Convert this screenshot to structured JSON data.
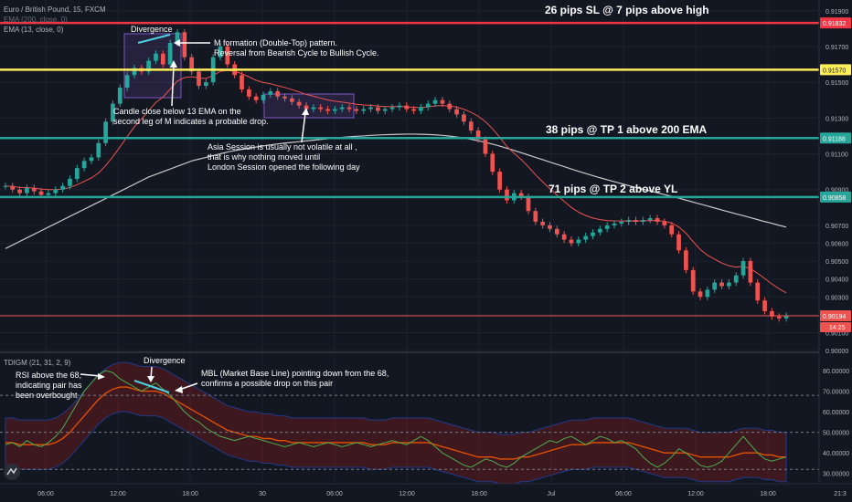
{
  "header": {
    "symbol_line": "Euro / British Pound, 15, FXCM",
    "indicator_1": "EMA (200, close, 0)",
    "indicator_2": "EMA (13, close, 0)",
    "osc_label": "TDIGM (21, 31, 2, 9)"
  },
  "price_axis": {
    "ticks": [
      "0.91900",
      "0.91700",
      "0.91500",
      "0.91300",
      "0.91100",
      "0.90900",
      "0.90700",
      "0.90600",
      "0.90500",
      "0.90400",
      "0.90300",
      "0.90200",
      "0.90100",
      "0.90000"
    ],
    "tick_values": [
      0.919,
      0.917,
      0.915,
      0.913,
      0.911,
      0.909,
      0.907,
      0.906,
      0.905,
      0.904,
      0.903,
      0.902,
      0.901,
      0.9
    ]
  },
  "osc_axis": {
    "ticks": [
      "80.00000",
      "70.00000",
      "60.00000",
      "50.00000",
      "40.00000",
      "30.00000"
    ],
    "tick_values": [
      80,
      70,
      60,
      50,
      40,
      30
    ]
  },
  "time_axis": {
    "labels": [
      "06:00",
      "12:00",
      "18:00",
      "30",
      "06:00",
      "12:00",
      "18:00",
      "Jul",
      "06:00",
      "12:00",
      "18:00",
      "21:3"
    ]
  },
  "levels": [
    {
      "price": 0.91832,
      "label": "0.91832",
      "color": "#f23645",
      "caption": "26 pips SL @ 7 pips above high"
    },
    {
      "price": 0.9157,
      "label": "0.91570",
      "color": "#ffee58",
      "caption": ""
    },
    {
      "price": 0.91188,
      "label": "0.91188",
      "color": "#26a69a",
      "caption": "38 pips @ TP 1 above 200 EMA"
    },
    {
      "price": 0.90858,
      "label": "0.90858",
      "color": "#26a69a",
      "caption": "71 pips @ TP 2 above YL"
    },
    {
      "price": 0.90194,
      "label": "0.90194",
      "color": "#ef5350",
      "caption": ""
    }
  ],
  "current_price": {
    "label": "0.90194",
    "countdown": "14:25"
  },
  "annotations": {
    "divergence_top": "Divergence",
    "m_formation_1": "M formation (Double-Top) pattern.",
    "m_formation_2": "Reversal from Bearish Cycle to Bullish Cycle.",
    "candle_close_1": "Candle close below 13 EMA on the",
    "candle_close_2": "second leg of M indicates a probable drop.",
    "asia_1": "Asia Session is usually not volatile at all ,",
    "asia_2": "that is why nothing moved until",
    "asia_3": "London Session opened the following day",
    "divergence_osc": "Divergence",
    "rsi_1": "RSI above the 68,",
    "rsi_2": "indicating pair has",
    "rsi_3": "been overbought",
    "mbl_1": "MBL (Market Base Line) pointing down from the 68,",
    "mbl_2": "confirms a possible drop on this pair"
  },
  "colors": {
    "background": "#131722",
    "up": "#26a69a",
    "down": "#ef5350",
    "ema13": "#ef5350",
    "ema200": "#c8c8c8",
    "rsi": "#4caf50",
    "mbl": "#e65100",
    "band": "#8e1b1b"
  },
  "chart_data": {
    "type": "candlestick",
    "symbol": "Euro / British Pound",
    "timeframe": "15",
    "ylim": [
      0.8999,
      0.9196
    ],
    "close_series": [
      0.9092,
      0.909,
      0.9088,
      0.9091,
      0.9089,
      0.9087,
      0.9088,
      0.909,
      0.9092,
      0.9096,
      0.9102,
      0.9106,
      0.9108,
      0.9116,
      0.9128,
      0.9138,
      0.9147,
      0.9154,
      0.9158,
      0.9156,
      0.9162,
      0.9166,
      0.916,
      0.9172,
      0.9178,
      0.9164,
      0.9156,
      0.9148,
      0.915,
      0.9164,
      0.917,
      0.916,
      0.9154,
      0.9146,
      0.9142,
      0.914,
      0.9143,
      0.9145,
      0.9142,
      0.9141,
      0.9139,
      0.9137,
      0.9135,
      0.9136,
      0.9135,
      0.9134,
      0.9135,
      0.9136,
      0.9135,
      0.9134,
      0.9135,
      0.9136,
      0.9134,
      0.9135,
      0.9136,
      0.9137,
      0.9135,
      0.9134,
      0.9136,
      0.9138,
      0.914,
      0.9138,
      0.9135,
      0.9132,
      0.9128,
      0.9123,
      0.9118,
      0.911,
      0.91,
      0.909,
      0.9084,
      0.9088,
      0.9086,
      0.9078,
      0.9072,
      0.907,
      0.9068,
      0.9065,
      0.9062,
      0.906,
      0.9062,
      0.9064,
      0.9066,
      0.9068,
      0.907,
      0.9071,
      0.9072,
      0.9073,
      0.9072,
      0.9073,
      0.9074,
      0.9072,
      0.907,
      0.9065,
      0.9056,
      0.9045,
      0.9033,
      0.903,
      0.9034,
      0.9038,
      0.9036,
      0.9038,
      0.9042,
      0.905,
      0.9038,
      0.9028,
      0.9022,
      0.9019,
      0.9018,
      0.90194
    ],
    "ema13": [
      0.9092,
      0.90917,
      0.90912,
      0.90911,
      0.90908,
      0.90903,
      0.909,
      0.909,
      0.90903,
      0.90911,
      0.90927,
      0.90946,
      0.90965,
      0.90993,
      0.91034,
      0.91084,
      0.91139,
      0.91196,
      0.91251,
      0.91295,
      0.91341,
      0.91387,
      0.91417,
      0.91461,
      0.91507,
      0.91526,
      0.91531,
      0.91524,
      0.91521,
      0.91538,
      0.91561,
      0.91566,
      0.91562,
      0.91548,
      0.9153,
      0.91511,
      0.91499,
      0.91492,
      0.91481,
      0.91471,
      0.91459,
      0.91446,
      0.91432,
      0.91422,
      0.91411,
      0.91401,
      0.91394,
      0.91389,
      0.91383,
      0.91377,
      0.91373,
      0.91371,
      0.91367,
      0.91364,
      0.91364,
      0.91365,
      0.91363,
      0.91359,
      0.91359,
      0.91362,
      0.91368,
      0.9137,
      0.91367,
      0.91361,
      0.91349,
      0.91332,
      0.9131,
      0.9128,
      0.9124,
      0.91192,
      0.91141,
      0.91103,
      0.91068,
      0.91027,
      0.90983,
      0.90943,
      0.90905,
      0.90869,
      0.90834,
      0.908,
      0.90774,
      0.90755,
      0.90741,
      0.90732,
      0.90727,
      0.90725,
      0.90724,
      0.90725,
      0.90724,
      0.90725,
      0.90727,
      0.90726,
      0.90723,
      0.90713,
      0.90691,
      0.90656,
      0.90609,
      0.90565,
      0.90533,
      0.90511,
      0.90489,
      0.90474,
      0.90466,
      0.90471,
      0.90458,
      0.90432,
      0.90402,
      0.90372,
      0.90345,
      0.90323
    ],
    "ema200": [
      0.9057,
      0.9059,
      0.9061,
      0.9063,
      0.9065,
      0.9067,
      0.9069,
      0.9071,
      0.9073,
      0.9075,
      0.9077,
      0.9079,
      0.9081,
      0.9083,
      0.9085,
      0.9087,
      0.9089,
      0.9091,
      0.9093,
      0.9095,
      0.9097,
      0.90985,
      0.91,
      0.91015,
      0.9103,
      0.91045,
      0.9106,
      0.9107,
      0.9108,
      0.9109,
      0.911,
      0.9111,
      0.91118,
      0.91125,
      0.91132,
      0.91138,
      0.91144,
      0.9115,
      0.91155,
      0.9116,
      0.91164,
      0.91168,
      0.91172,
      0.91176,
      0.9118,
      0.91184,
      0.91188,
      0.91192,
      0.91195,
      0.91198,
      0.912,
      0.91203,
      0.91205,
      0.91207,
      0.91208,
      0.91209,
      0.9121,
      0.9121,
      0.91209,
      0.91208,
      0.91206,
      0.91203,
      0.91199,
      0.91194,
      0.91188,
      0.91181,
      0.91173,
      0.91164,
      0.91154,
      0.91143,
      0.91131,
      0.91119,
      0.91106,
      0.91093,
      0.9108,
      0.91067,
      0.91054,
      0.91041,
      0.91028,
      0.91015,
      0.91002,
      0.9099,
      0.90978,
      0.90966,
      0.90955,
      0.90944,
      0.90933,
      0.90922,
      0.90912,
      0.90902,
      0.90892,
      0.90882,
      0.90872,
      0.90862,
      0.90852,
      0.90841,
      0.9083,
      0.90819,
      0.90808,
      0.90797,
      0.90786,
      0.90775,
      0.90764,
      0.90754,
      0.90743,
      0.90732,
      0.90721,
      0.90711,
      0.907,
      0.9069
    ],
    "oscillator": {
      "rsi": [
        44,
        45,
        43,
        46,
        44,
        43,
        45,
        48,
        52,
        58,
        64,
        70,
        74,
        78,
        80,
        79,
        76,
        74,
        72,
        70,
        72,
        74,
        71,
        68,
        64,
        60,
        57,
        55,
        52,
        50,
        48,
        47,
        46,
        47,
        48,
        47,
        46,
        45,
        44,
        43,
        44,
        45,
        44,
        43,
        44,
        45,
        44,
        43,
        44,
        45,
        44,
        43,
        44,
        45,
        46,
        45,
        44,
        46,
        48,
        46,
        43,
        40,
        38,
        36,
        34,
        33,
        35,
        37,
        36,
        34,
        33,
        35,
        38,
        40,
        42,
        44,
        46,
        45,
        47,
        48,
        46,
        44,
        46,
        48,
        47,
        45,
        46,
        44,
        42,
        38,
        35,
        33,
        35,
        38,
        42,
        40,
        37,
        34,
        33,
        34,
        36,
        40,
        44,
        48,
        44,
        40,
        37,
        36,
        37,
        38
      ],
      "mbl": [
        45,
        45,
        44,
        44,
        44,
        44,
        44,
        45,
        47,
        50,
        54,
        58,
        62,
        66,
        69,
        71,
        72,
        72,
        71,
        70,
        70,
        70,
        69,
        67,
        65,
        63,
        61,
        59,
        57,
        55,
        53,
        51,
        50,
        49,
        48,
        48,
        47,
        47,
        46,
        46,
        45,
        45,
        45,
        45,
        45,
        45,
        45,
        45,
        45,
        45,
        45,
        44,
        44,
        44,
        45,
        45,
        45,
        45,
        45,
        45,
        44,
        43,
        42,
        41,
        40,
        39,
        38,
        38,
        38,
        37,
        37,
        37,
        38,
        38,
        39,
        40,
        41,
        42,
        43,
        44,
        44,
        44,
        45,
        45,
        45,
        45,
        45,
        45,
        44,
        43,
        42,
        41,
        40,
        40,
        40,
        40,
        39,
        38,
        38,
        38,
        38,
        38,
        39,
        40,
        40,
        40,
        39,
        39,
        38,
        38
      ],
      "ylim": [
        25,
        88
      ],
      "levels": [
        68,
        50,
        32
      ]
    }
  }
}
